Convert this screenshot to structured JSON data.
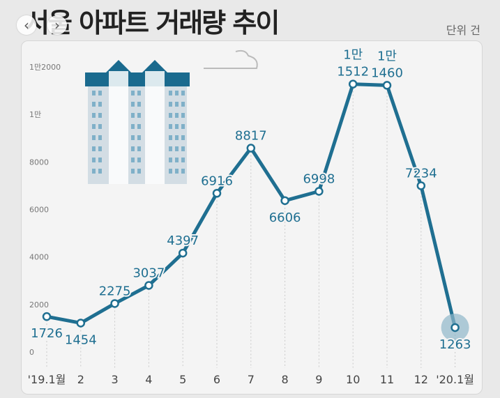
{
  "header": {
    "title": "서울 아파트 거래량 추이",
    "unit_label": "단위 건",
    "prev_glyph": "‹",
    "next_glyph": "›"
  },
  "colors": {
    "line": "#1f6f91",
    "point_fill": "#ffffff",
    "label": "#1f6f91",
    "axis_text": "#777777",
    "grid": "#c9c9c9",
    "building": "#d3dde4",
    "building_roof": "#1a6a8e",
    "building_window": "#7fb0c8",
    "highlight": "#8fb7c9"
  },
  "chart_data": {
    "type": "line",
    "title": "서울 아파트 거래량 추이",
    "unit": "단위 건",
    "categories": [
      "'19.1월",
      "2",
      "3",
      "4",
      "5",
      "6",
      "7",
      "8",
      "9",
      "10",
      "11",
      "12",
      "'20.1월"
    ],
    "values": [
      1726,
      1454,
      2275,
      3037,
      4397,
      6916,
      8817,
      6606,
      6998,
      11512,
      11460,
      7234,
      1263
    ],
    "data_labels": [
      [
        "1726"
      ],
      [
        "1454"
      ],
      [
        "2275"
      ],
      [
        "3037"
      ],
      [
        "4397"
      ],
      [
        "6916"
      ],
      [
        "8817"
      ],
      [
        "6606"
      ],
      [
        "6998"
      ],
      [
        "1만",
        "1512"
      ],
      [
        "1만",
        "1460"
      ],
      [
        "7234"
      ],
      [
        "1263"
      ]
    ],
    "y_ticks": [
      {
        "value": 0,
        "label": "0"
      },
      {
        "value": 2000,
        "label": "2000"
      },
      {
        "value": 4000,
        "label": "4000"
      },
      {
        "value": 6000,
        "label": "6000"
      },
      {
        "value": 8000,
        "label": "8000"
      },
      {
        "value": 10000,
        "label": "1만"
      },
      {
        "value": 12000,
        "label": "1만2000"
      }
    ],
    "ylim": [
      0,
      12000
    ],
    "grid": "vertical dotted lines at each category",
    "highlight_last_point": true
  }
}
